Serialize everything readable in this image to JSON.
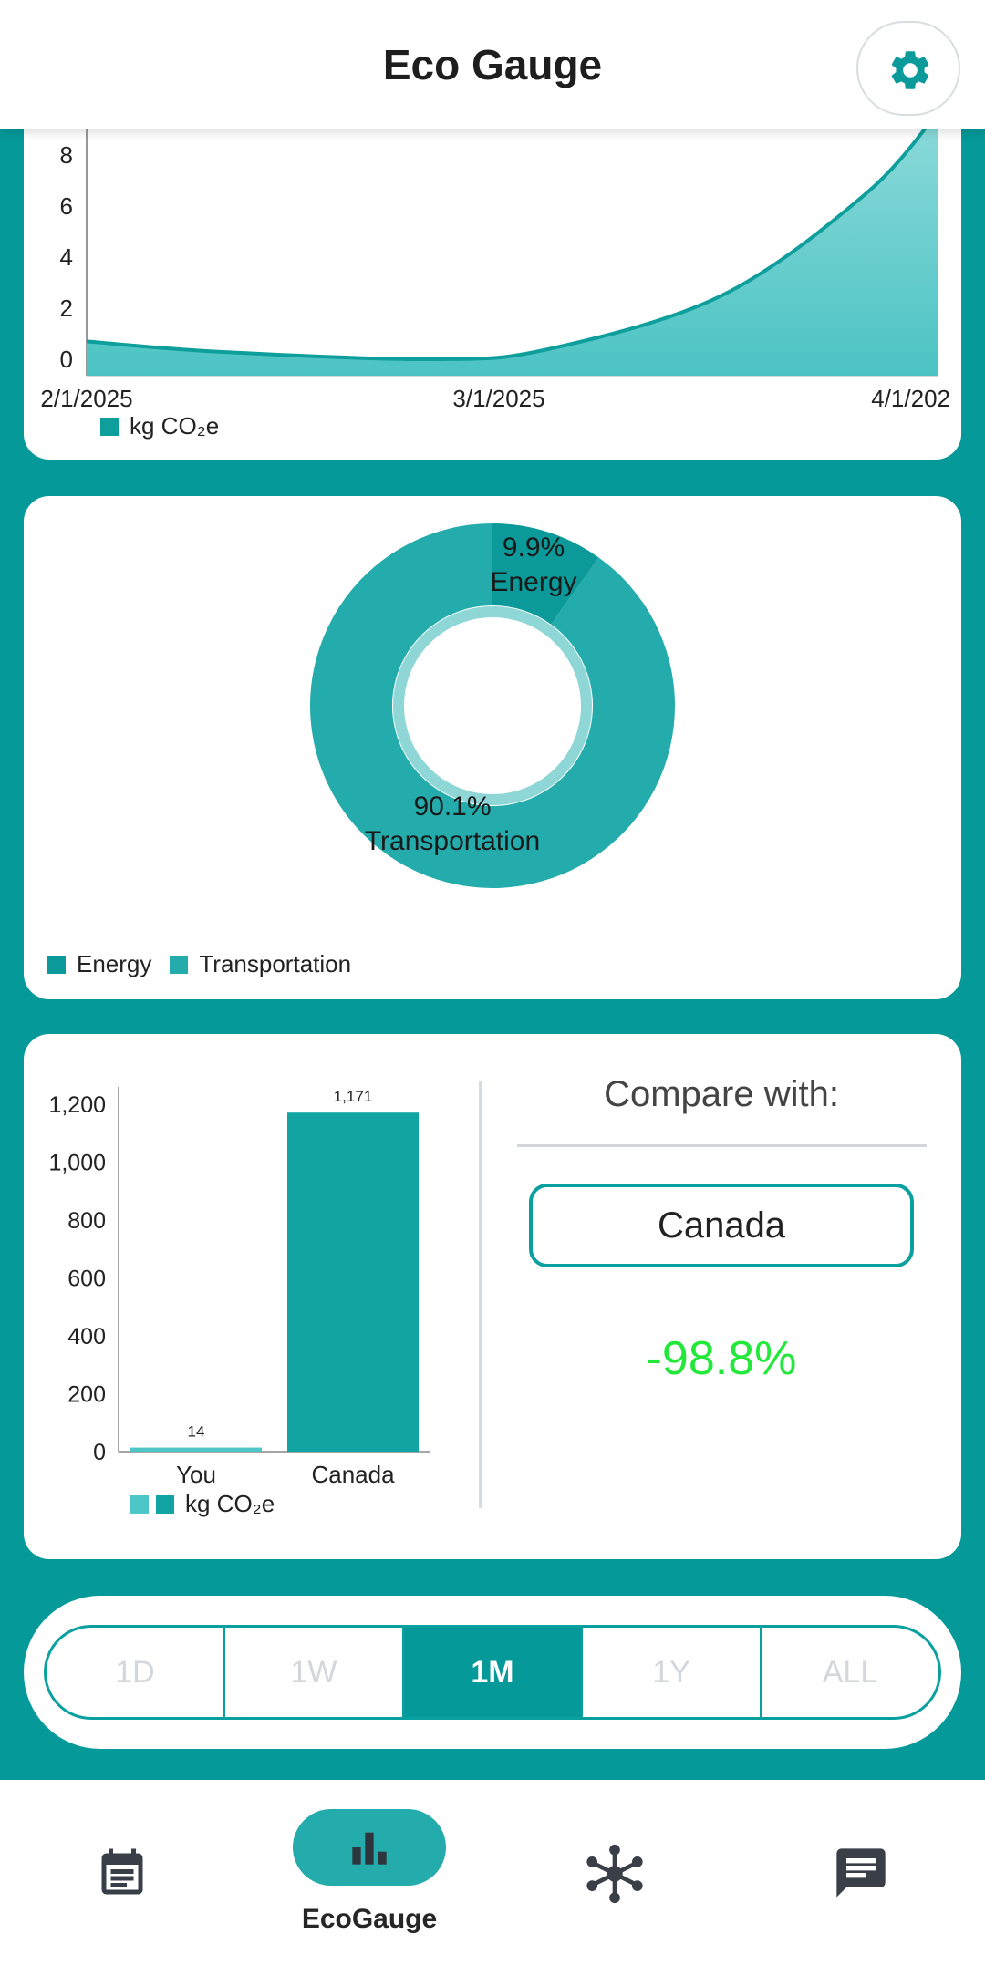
{
  "header": {
    "title": "Eco Gauge",
    "settings_icon": "gear-icon"
  },
  "line_chart": {
    "chart_data": {
      "type": "area",
      "x_tick_labels": [
        "2/1/2025",
        "3/1/2025",
        "4/1/202"
      ],
      "y_ticks": [
        0,
        2,
        4,
        6,
        8
      ],
      "ylim": [
        -0.5,
        8.8
      ],
      "series": [
        {
          "name": "kg CO₂e",
          "x": [
            "2025-02-01",
            "2025-02-10",
            "2025-02-25",
            "2025-03-05",
            "2025-03-17",
            "2025-03-27",
            "2025-04-01"
          ],
          "y": [
            0.7,
            0.3,
            0.0,
            0.4,
            2.5,
            6.5,
            9.7
          ]
        }
      ],
      "legend": "bottom-left",
      "color": "#0e9e9c"
    }
  },
  "donut_chart": {
    "chart_data": {
      "type": "pie",
      "labels": [
        "Energy",
        "Transportation"
      ],
      "values": [
        9.9,
        90.1
      ],
      "slice_labels": [
        "9.9%",
        "90.1%"
      ],
      "colors": [
        "#0b9a99",
        "#24abab"
      ],
      "legend": "bottom-left"
    }
  },
  "bar_chart": {
    "chart_data": {
      "type": "bar",
      "categories": [
        "You",
        "Canada"
      ],
      "values": [
        14,
        1171
      ],
      "value_labels": [
        "14",
        "1,171"
      ],
      "y_ticks": [
        0,
        200,
        400,
        600,
        800,
        1000,
        1200
      ],
      "y_tick_labels": [
        "0",
        "200",
        "400",
        "600",
        "800",
        "1,000",
        "1,200"
      ],
      "ylim": [
        0,
        1280
      ],
      "colors": [
        "#4cc6c6",
        "#12a4a3"
      ],
      "legend_label": "kg CO₂e"
    }
  },
  "compare": {
    "label": "Compare with:",
    "country": "Canada",
    "difference": "-98.8%",
    "difference_color": "#22e83a"
  },
  "range_selector": {
    "options": [
      "1D",
      "1W",
      "1M",
      "1Y",
      "ALL"
    ],
    "selected": "1M"
  },
  "bottom_nav": {
    "items": [
      {
        "icon": "journal-icon"
      },
      {
        "icon": "bar-chart-icon",
        "label": "EcoGauge",
        "active": true
      },
      {
        "icon": "network-icon"
      },
      {
        "icon": "chat-icon"
      }
    ]
  }
}
